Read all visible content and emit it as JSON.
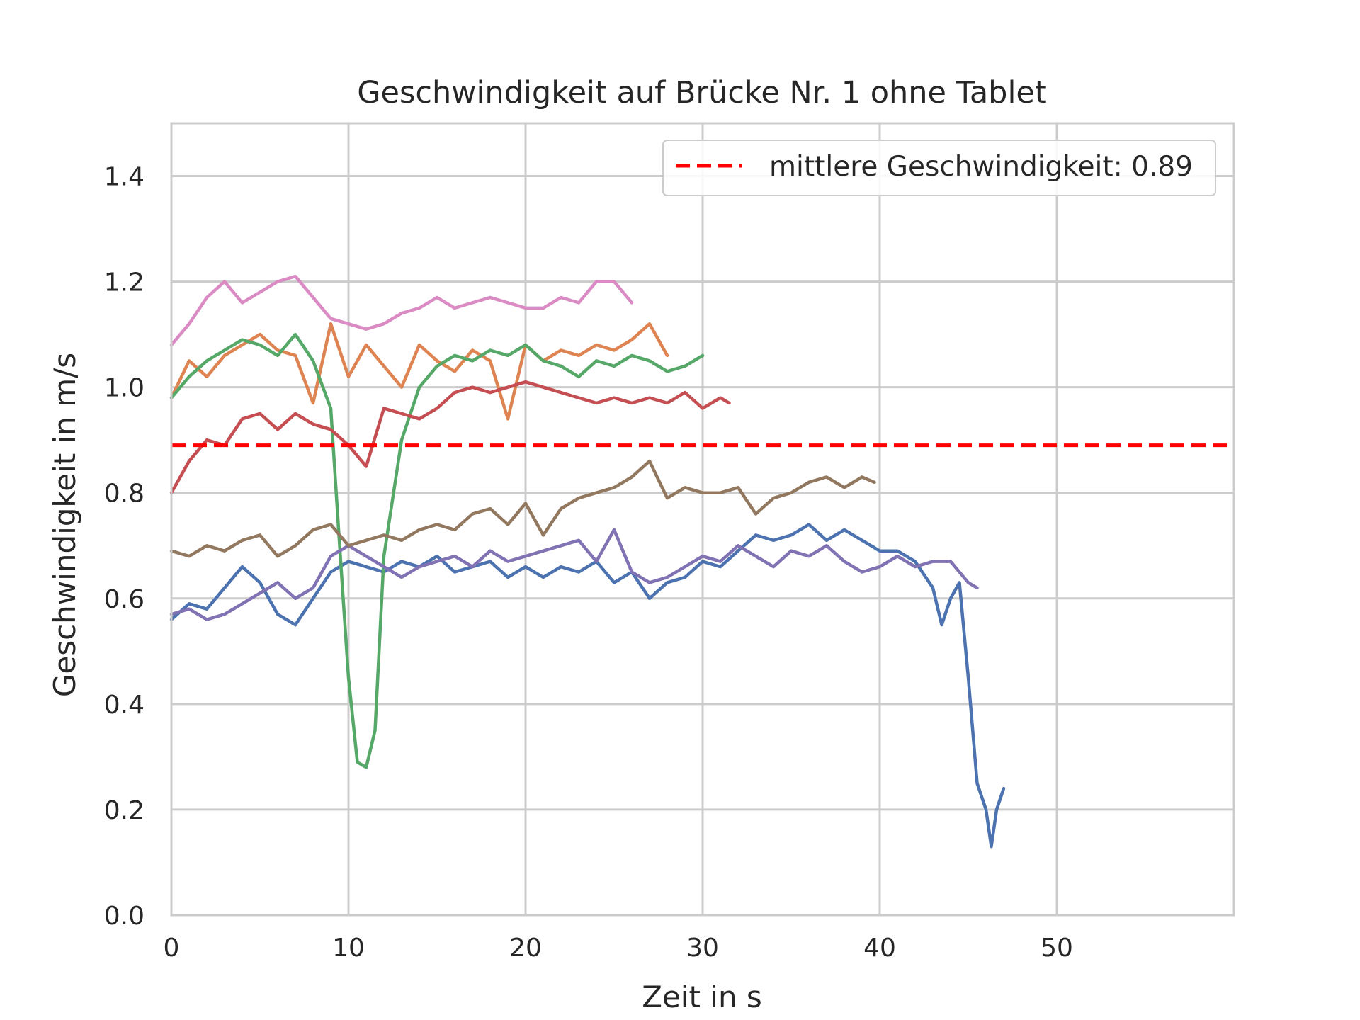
{
  "chart_data": {
    "type": "line",
    "title": "Geschwindigkeit auf Brücke Nr. 1 ohne Tablet",
    "xlabel": "Zeit in s",
    "ylabel": "Geschwindigkeit in m/s",
    "xlim": [
      0,
      60
    ],
    "ylim": [
      0,
      1.5
    ],
    "xticks": [
      0,
      10,
      20,
      30,
      40,
      50
    ],
    "yticks": [
      0.0,
      0.2,
      0.4,
      0.6,
      0.8,
      1.0,
      1.2,
      1.4
    ],
    "xtick_labels": [
      "0",
      "10",
      "20",
      "30",
      "40",
      "50"
    ],
    "ytick_labels": [
      "0.0",
      "0.2",
      "0.4",
      "0.6",
      "0.8",
      "1.0",
      "1.2",
      "1.4"
    ],
    "grid": true,
    "legend_position": "top-right",
    "mean_line": {
      "label": "mittlere Geschwindigkeit: 0.89",
      "value": 0.89,
      "color": "#ff0000",
      "style": "dashed"
    },
    "series": [
      {
        "color": "#4c72b0",
        "x": [
          0,
          1,
          2,
          3,
          4,
          5,
          6,
          7,
          8,
          9,
          10,
          11,
          12,
          13,
          14,
          15,
          16,
          17,
          18,
          19,
          20,
          21,
          22,
          23,
          24,
          25,
          26,
          27,
          28,
          29,
          30,
          31,
          32,
          33,
          34,
          35,
          36,
          37,
          38,
          39,
          40,
          41,
          42,
          43,
          43.5,
          44,
          44.5,
          45,
          45.5,
          46,
          46.3,
          46.6,
          47
        ],
        "y": [
          0.56,
          0.59,
          0.58,
          0.62,
          0.66,
          0.63,
          0.57,
          0.55,
          0.6,
          0.65,
          0.67,
          0.66,
          0.65,
          0.67,
          0.66,
          0.68,
          0.65,
          0.66,
          0.67,
          0.64,
          0.66,
          0.64,
          0.66,
          0.65,
          0.67,
          0.63,
          0.65,
          0.6,
          0.63,
          0.64,
          0.67,
          0.66,
          0.69,
          0.72,
          0.71,
          0.72,
          0.74,
          0.71,
          0.73,
          0.71,
          0.69,
          0.69,
          0.67,
          0.62,
          0.55,
          0.6,
          0.63,
          0.45,
          0.25,
          0.2,
          0.13,
          0.2,
          0.24
        ]
      },
      {
        "color": "#dd8452",
        "x": [
          0,
          1,
          2,
          3,
          4,
          5,
          6,
          7,
          8,
          9,
          10,
          11,
          12,
          13,
          14,
          15,
          16,
          17,
          18,
          19,
          20,
          21,
          22,
          23,
          24,
          25,
          26,
          27,
          28
        ],
        "y": [
          0.98,
          1.05,
          1.02,
          1.06,
          1.08,
          1.1,
          1.07,
          1.06,
          0.97,
          1.12,
          1.02,
          1.08,
          1.04,
          1.0,
          1.08,
          1.05,
          1.03,
          1.07,
          1.05,
          0.94,
          1.08,
          1.05,
          1.07,
          1.06,
          1.08,
          1.07,
          1.09,
          1.12,
          1.06
        ]
      },
      {
        "color": "#55a868",
        "x": [
          0,
          1,
          2,
          3,
          4,
          5,
          6,
          7,
          8,
          9,
          9.5,
          10,
          10.5,
          11,
          11.5,
          12,
          13,
          14,
          15,
          16,
          17,
          18,
          19,
          20,
          21,
          22,
          23,
          24,
          25,
          26,
          27,
          28,
          29,
          30
        ],
        "y": [
          0.98,
          1.02,
          1.05,
          1.07,
          1.09,
          1.08,
          1.06,
          1.1,
          1.05,
          0.96,
          0.7,
          0.45,
          0.29,
          0.28,
          0.35,
          0.68,
          0.9,
          1.0,
          1.04,
          1.06,
          1.05,
          1.07,
          1.06,
          1.08,
          1.05,
          1.04,
          1.02,
          1.05,
          1.04,
          1.06,
          1.05,
          1.03,
          1.04,
          1.06
        ]
      },
      {
        "color": "#c44e52",
        "x": [
          0,
          1,
          2,
          3,
          4,
          5,
          6,
          7,
          8,
          9,
          10,
          11,
          12,
          13,
          14,
          15,
          16,
          17,
          18,
          19,
          20,
          21,
          22,
          23,
          24,
          25,
          26,
          27,
          28,
          29,
          30,
          31,
          31.5
        ],
        "y": [
          0.8,
          0.86,
          0.9,
          0.89,
          0.94,
          0.95,
          0.92,
          0.95,
          0.93,
          0.92,
          0.89,
          0.85,
          0.96,
          0.95,
          0.94,
          0.96,
          0.99,
          1.0,
          0.99,
          1.0,
          1.01,
          1.0,
          0.99,
          0.98,
          0.97,
          0.98,
          0.97,
          0.98,
          0.97,
          0.99,
          0.96,
          0.98,
          0.97
        ]
      },
      {
        "color": "#8172b3",
        "x": [
          0,
          1,
          2,
          3,
          4,
          5,
          6,
          7,
          8,
          9,
          10,
          11,
          12,
          13,
          14,
          15,
          16,
          17,
          18,
          19,
          20,
          21,
          22,
          23,
          24,
          25,
          26,
          27,
          28,
          29,
          30,
          31,
          32,
          33,
          34,
          35,
          36,
          37,
          38,
          39,
          40,
          41,
          42,
          43,
          44,
          45,
          45.5
        ],
        "y": [
          0.57,
          0.58,
          0.56,
          0.57,
          0.59,
          0.61,
          0.63,
          0.6,
          0.62,
          0.68,
          0.7,
          0.68,
          0.66,
          0.64,
          0.66,
          0.67,
          0.68,
          0.66,
          0.69,
          0.67,
          0.68,
          0.69,
          0.7,
          0.71,
          0.67,
          0.73,
          0.65,
          0.63,
          0.64,
          0.66,
          0.68,
          0.67,
          0.7,
          0.68,
          0.66,
          0.69,
          0.68,
          0.7,
          0.67,
          0.65,
          0.66,
          0.68,
          0.66,
          0.67,
          0.67,
          0.63,
          0.62
        ]
      },
      {
        "color": "#937860",
        "x": [
          0,
          1,
          2,
          3,
          4,
          5,
          6,
          7,
          8,
          9,
          10,
          11,
          12,
          13,
          14,
          15,
          16,
          17,
          18,
          19,
          20,
          21,
          22,
          23,
          24,
          25,
          26,
          27,
          28,
          29,
          30,
          31,
          32,
          33,
          34,
          35,
          36,
          37,
          38,
          39,
          39.7
        ],
        "y": [
          0.69,
          0.68,
          0.7,
          0.69,
          0.71,
          0.72,
          0.68,
          0.7,
          0.73,
          0.74,
          0.7,
          0.71,
          0.72,
          0.71,
          0.73,
          0.74,
          0.73,
          0.76,
          0.77,
          0.74,
          0.78,
          0.72,
          0.77,
          0.79,
          0.8,
          0.81,
          0.83,
          0.86,
          0.79,
          0.81,
          0.8,
          0.8,
          0.81,
          0.76,
          0.79,
          0.8,
          0.82,
          0.83,
          0.81,
          0.83,
          0.82
        ]
      },
      {
        "color": "#da8bc3",
        "x": [
          0,
          1,
          2,
          3,
          4,
          5,
          6,
          7,
          8,
          9,
          10,
          11,
          12,
          13,
          14,
          15,
          16,
          17,
          18,
          19,
          20,
          21,
          22,
          23,
          24,
          25,
          26
        ],
        "y": [
          1.08,
          1.12,
          1.17,
          1.2,
          1.16,
          1.18,
          1.2,
          1.21,
          1.17,
          1.13,
          1.12,
          1.11,
          1.12,
          1.14,
          1.15,
          1.17,
          1.15,
          1.16,
          1.17,
          1.16,
          1.15,
          1.15,
          1.17,
          1.16,
          1.2,
          1.2,
          1.16
        ]
      }
    ]
  }
}
